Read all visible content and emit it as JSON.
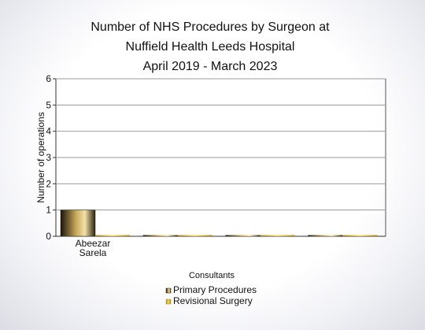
{
  "chart_data": {
    "type": "bar",
    "title": [
      "Number of NHS Procedures by Surgeon at",
      "Nuffield  Health Leeds Hospital",
      "April 2019 - March 2023"
    ],
    "xlabel": "Consultants",
    "ylabel": "Number of operations",
    "ylim": [
      0,
      6
    ],
    "yticks": [
      0,
      1,
      2,
      3,
      4,
      5,
      6
    ],
    "grid": true,
    "legend_position": "bottom-center",
    "categories": [
      [
        "Abeezar",
        "Sarela"
      ],
      [],
      [],
      []
    ],
    "series": [
      {
        "name": "Primary Procedures",
        "values": [
          1,
          0,
          0,
          0
        ],
        "color": "#2a2418"
      },
      {
        "name": "Revisional Surgery",
        "values": [
          0,
          0,
          0,
          0
        ],
        "color": "#d9b42a"
      }
    ]
  }
}
